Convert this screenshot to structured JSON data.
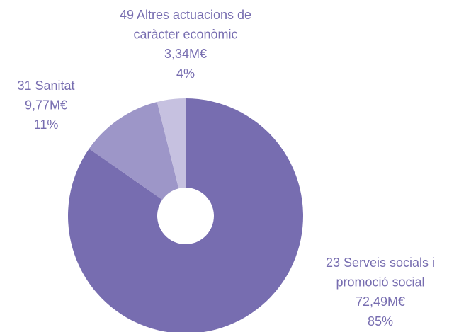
{
  "chart_data": {
    "type": "donut",
    "categories": [
      [
        "23 Serveis socials i",
        "promoció social"
      ],
      [
        "31 Sanitat"
      ],
      [
        "49 Altres actuacions de",
        "caràcter econòmic"
      ]
    ],
    "values": [
      72.49,
      9.77,
      3.34
    ],
    "value_labels": [
      "72,49M€",
      "9,77M€",
      "3,34M€"
    ],
    "percent_labels": [
      "85%",
      "11%",
      "4%"
    ],
    "colors": [
      "#776db0",
      "#9d96c8",
      "#c6c1e0"
    ]
  }
}
